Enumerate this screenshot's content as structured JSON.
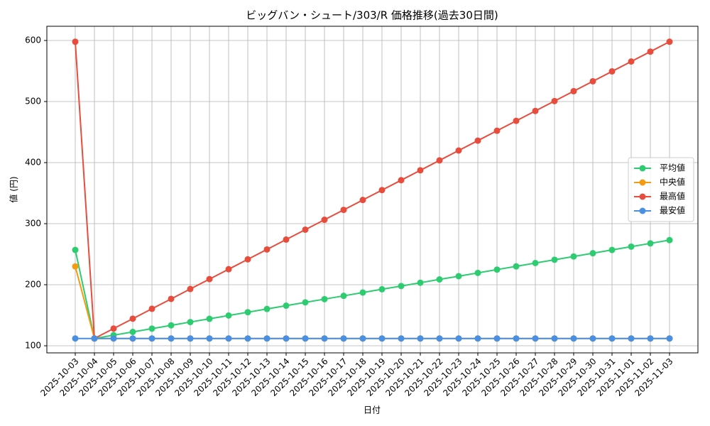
{
  "chart_data": {
    "type": "line",
    "title": "ビッグバン・シュート/303/R 価格推移(過去30日間)",
    "x_label": "日付",
    "y_label": "値 (円)",
    "categories": [
      "2025-10-03",
      "2025-10-04",
      "2025-10-05",
      "2025-10-06",
      "2025-10-07",
      "2025-10-08",
      "2025-10-09",
      "2025-10-10",
      "2025-10-11",
      "2025-10-12",
      "2025-10-13",
      "2025-10-14",
      "2025-10-15",
      "2025-10-16",
      "2025-10-17",
      "2025-10-18",
      "2025-10-19",
      "2025-10-20",
      "2025-10-21",
      "2025-10-22",
      "2025-10-23",
      "2025-10-24",
      "2025-10-25",
      "2025-10-26",
      "2025-10-27",
      "2025-10-28",
      "2025-10-29",
      "2025-10-30",
      "2025-10-31",
      "2025-11-01",
      "2025-11-02",
      "2025-11-03"
    ],
    "series": [
      {
        "name": "平均値",
        "color": "#2ecc71",
        "values": [
          257,
          112,
          117.4,
          122.7,
          128.1,
          133.5,
          138.9,
          144.2,
          149.6,
          155,
          160.3,
          165.7,
          171.1,
          176.4,
          181.8,
          187.2,
          192.6,
          197.9,
          203.3,
          208.7,
          214,
          219.4,
          224.8,
          230.1,
          235.5,
          240.9,
          246.3,
          251.6,
          257,
          262.4,
          267.7,
          273.1
        ]
      },
      {
        "name": "中央値",
        "color": "#f39c12",
        "values": [
          230,
          112,
          112,
          112,
          112,
          112,
          112,
          112,
          112,
          112,
          112,
          112,
          112,
          112,
          112,
          112,
          112,
          112,
          112,
          112,
          112,
          112,
          112,
          112,
          112,
          112,
          112,
          112,
          112,
          112,
          112,
          112
        ]
      },
      {
        "name": "最高値",
        "color": "#e74c3c",
        "values": [
          598,
          112,
          128.2,
          144.4,
          160.6,
          176.8,
          193,
          209.2,
          225.4,
          241.6,
          257.8,
          274,
          290.2,
          306.4,
          322.6,
          338.8,
          355,
          371.2,
          387.4,
          403.6,
          419.8,
          436,
          452.2,
          468.4,
          484.6,
          500.8,
          517,
          533.2,
          549.4,
          565.6,
          581.8,
          598
        ]
      },
      {
        "name": "最安値",
        "color": "#4a90e2",
        "values": [
          112,
          112,
          112,
          112,
          112,
          112,
          112,
          112,
          112,
          112,
          112,
          112,
          112,
          112,
          112,
          112,
          112,
          112,
          112,
          112,
          112,
          112,
          112,
          112,
          112,
          112,
          112,
          112,
          112,
          112,
          112,
          112
        ]
      }
    ],
    "ylim": [
      88.4,
      623.3
    ],
    "yticks": [
      100,
      200,
      300,
      400,
      500,
      600
    ],
    "grid": true,
    "legend": "center right"
  }
}
